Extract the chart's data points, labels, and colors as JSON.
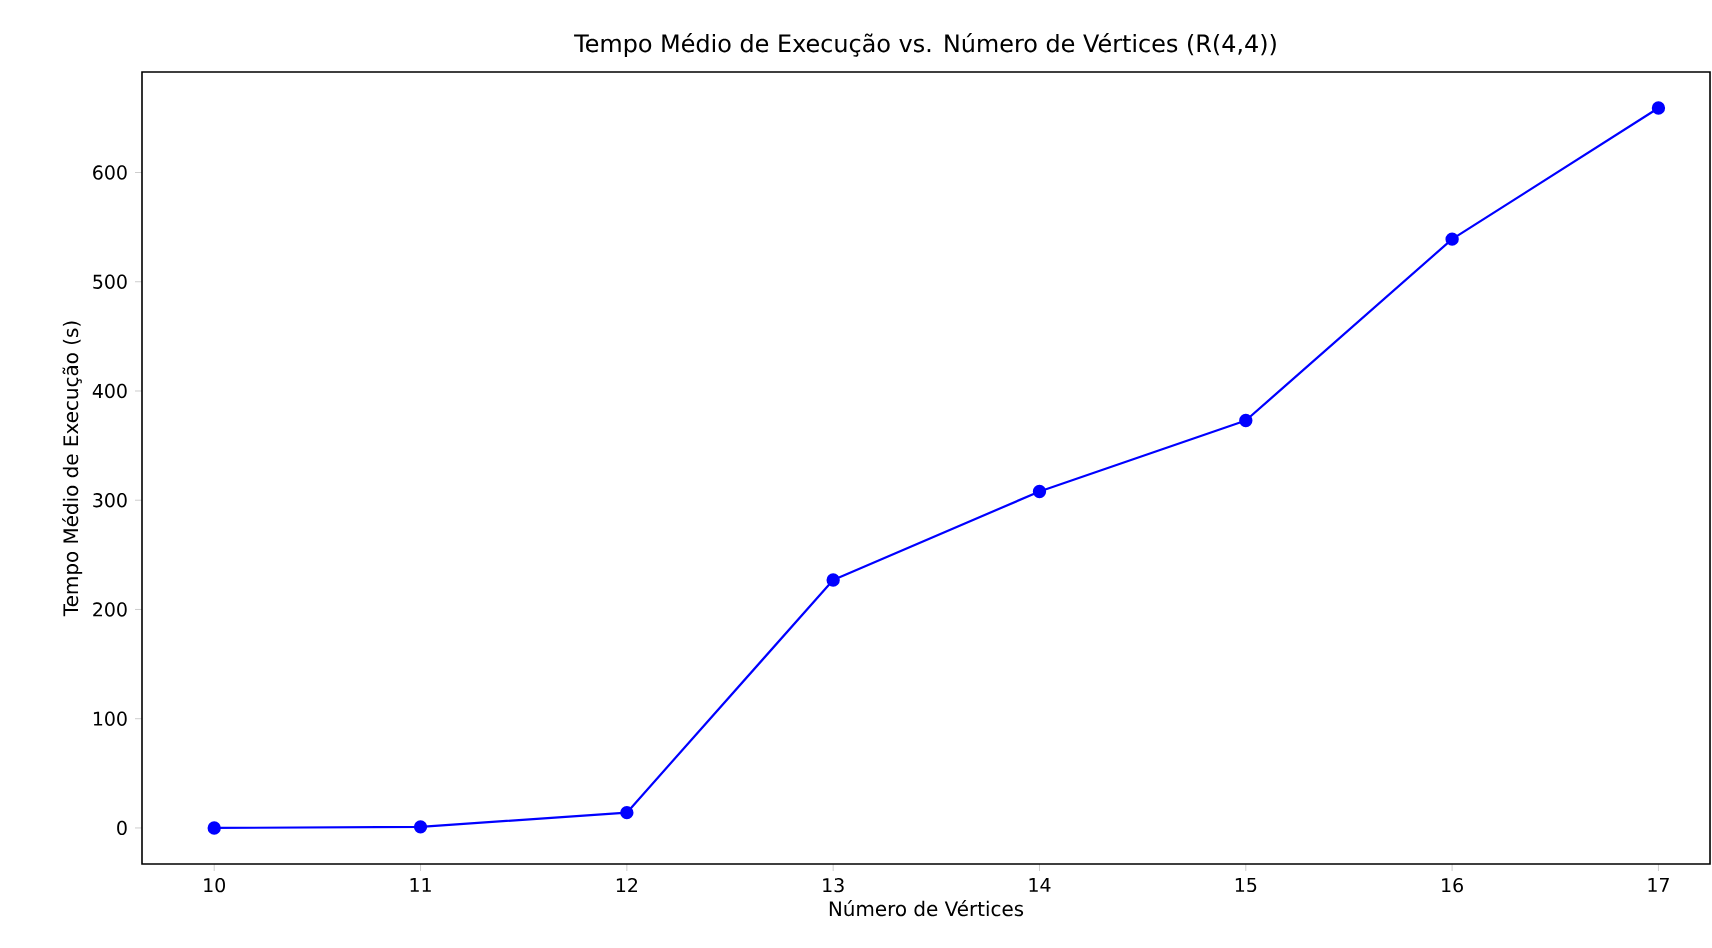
{
  "chart_data": {
    "type": "line",
    "title": "Tempo Médio de Execução vs. Número de Vértices (R(4,4))",
    "xlabel": "Número de Vértices",
    "ylabel": "Tempo Médio de Execução (s)",
    "x": [
      10,
      11,
      12,
      13,
      14,
      15,
      16,
      17
    ],
    "series": [
      {
        "color": "#0000ff",
        "values": [
          0,
          1,
          14,
          227,
          308,
          373,
          539,
          659
        ]
      }
    ],
    "xlim": [
      9.65,
      17.25
    ],
    "ylim": [
      -33,
      692
    ],
    "xticks": [
      10,
      11,
      12,
      13,
      14,
      15,
      16,
      17
    ],
    "yticks": [
      0,
      100,
      200,
      300,
      400,
      500,
      600
    ],
    "marker": "circle",
    "line_style": "solid",
    "grid": false
  }
}
